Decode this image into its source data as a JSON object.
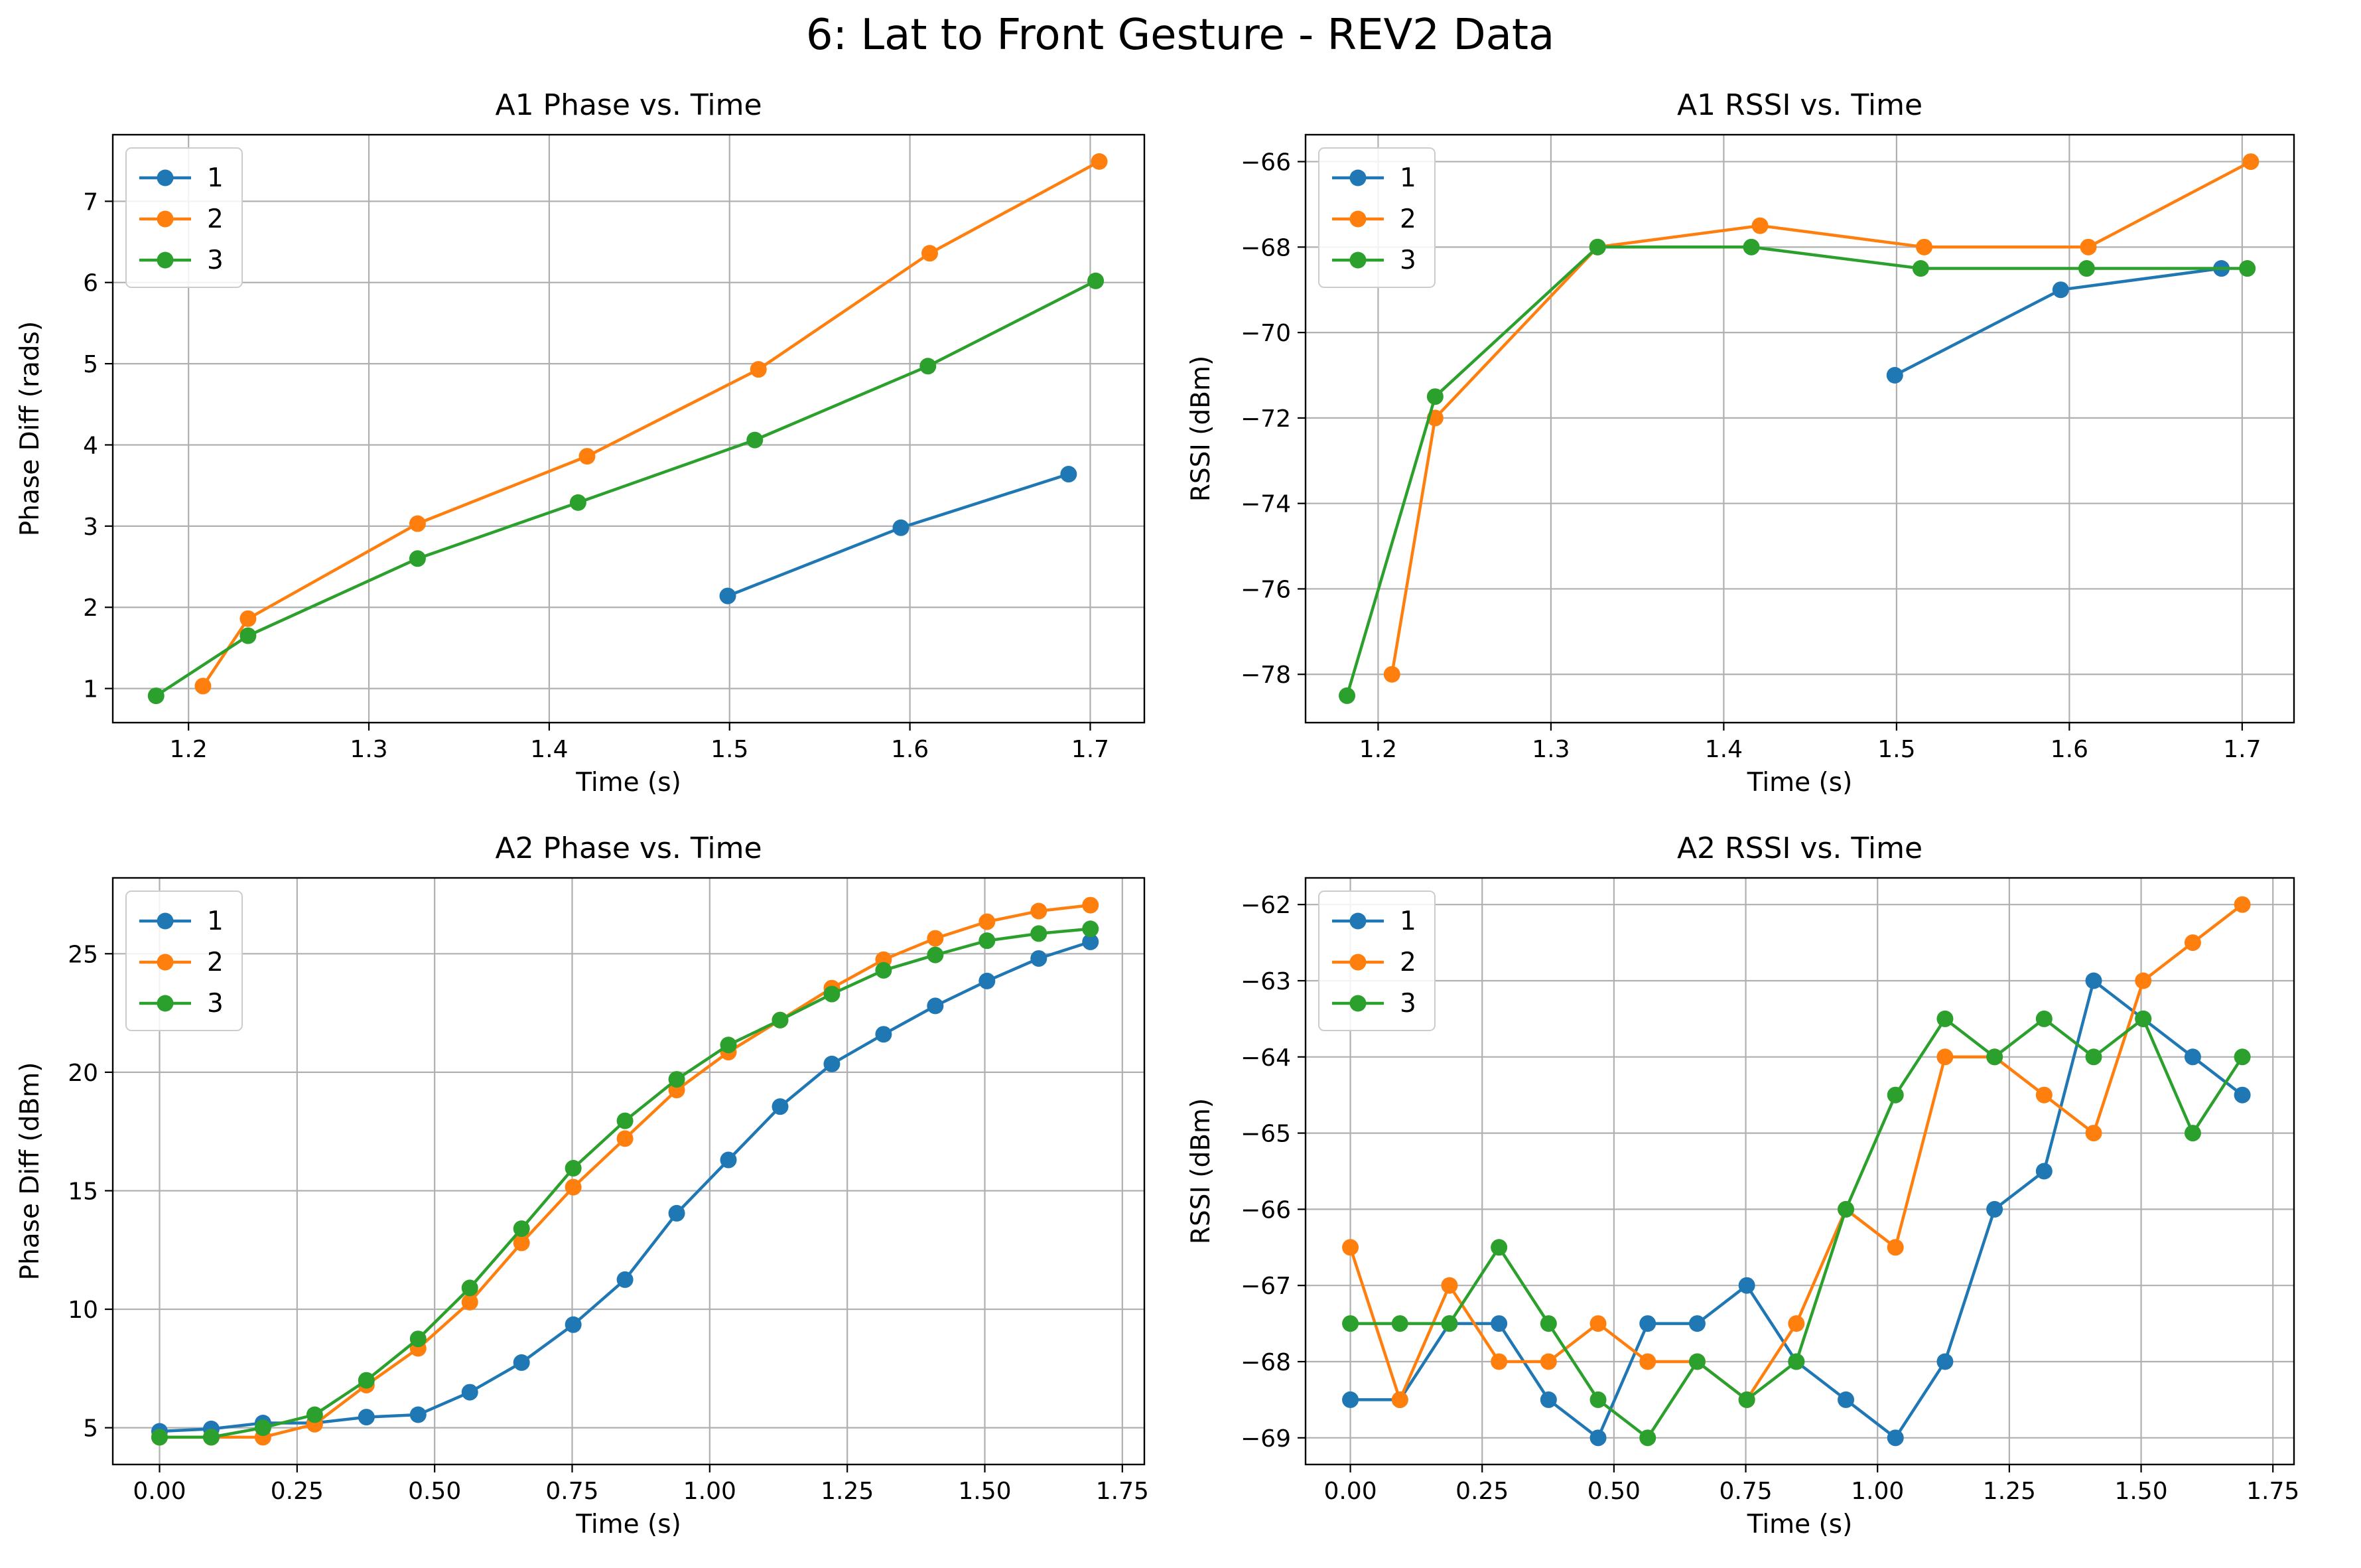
{
  "figure": {
    "title": "6: Lat to Front Gesture - REV2 Data"
  },
  "colors": {
    "series_1": "#1f77b4",
    "series_2": "#ff7f0e",
    "series_3": "#2ca02c",
    "grid": "#b0b0b0"
  },
  "chart_data": [
    {
      "type": "line",
      "title": "A1 Phase vs. Time",
      "xlabel": "Time (s)",
      "ylabel": "Phase Diff (rads)",
      "xlim": [
        1.158,
        1.73
      ],
      "ylim": [
        0.58,
        7.82
      ],
      "xticks": [
        1.2,
        1.3,
        1.4,
        1.5,
        1.6,
        1.7
      ],
      "xtick_labels": [
        "1.2",
        "1.3",
        "1.4",
        "1.5",
        "1.6",
        "1.7"
      ],
      "yticks": [
        1,
        2,
        3,
        4,
        5,
        6,
        7
      ],
      "ytick_labels": [
        "1",
        "2",
        "3",
        "4",
        "5",
        "6",
        "7"
      ],
      "grid": true,
      "legend": "upper-left",
      "series": [
        {
          "name": "1",
          "x": [
            1.499,
            1.595,
            1.688
          ],
          "y": [
            2.14,
            2.98,
            3.64
          ]
        },
        {
          "name": "2",
          "x": [
            1.208,
            1.233,
            1.327,
            1.421,
            1.516,
            1.611,
            1.705
          ],
          "y": [
            1.03,
            1.86,
            3.03,
            3.86,
            4.93,
            6.36,
            7.49
          ]
        },
        {
          "name": "3",
          "x": [
            1.182,
            1.233,
            1.327,
            1.416,
            1.514,
            1.61,
            1.703
          ],
          "y": [
            0.91,
            1.65,
            2.6,
            3.29,
            4.06,
            4.97,
            6.02
          ]
        }
      ]
    },
    {
      "type": "line",
      "title": "A1 RSSI vs. Time",
      "xlabel": "Time (s)",
      "ylabel": "RSSI (dBm)",
      "xlim": [
        1.158,
        1.73
      ],
      "ylim": [
        -79.13,
        -65.37
      ],
      "xticks": [
        1.2,
        1.3,
        1.4,
        1.5,
        1.6,
        1.7
      ],
      "xtick_labels": [
        "1.2",
        "1.3",
        "1.4",
        "1.5",
        "1.6",
        "1.7"
      ],
      "yticks": [
        -78,
        -76,
        -74,
        -72,
        -70,
        -68,
        -66
      ],
      "ytick_labels": [
        "−78",
        "−76",
        "−74",
        "−72",
        "−70",
        "−68",
        "−66"
      ],
      "grid": true,
      "legend": "upper-left",
      "series": [
        {
          "name": "1",
          "x": [
            1.499,
            1.595,
            1.688
          ],
          "y": [
            -71,
            -69,
            -68.5
          ]
        },
        {
          "name": "2",
          "x": [
            1.208,
            1.233,
            1.327,
            1.421,
            1.516,
            1.611,
            1.705
          ],
          "y": [
            -78,
            -72,
            -68,
            -67.5,
            -68,
            -68,
            -66
          ]
        },
        {
          "name": "3",
          "x": [
            1.182,
            1.233,
            1.327,
            1.416,
            1.514,
            1.61,
            1.703
          ],
          "y": [
            -78.5,
            -71.5,
            -68,
            -68,
            -68.5,
            -68.5,
            -68.5
          ]
        }
      ]
    },
    {
      "type": "line",
      "title": "A2 Phase vs. Time",
      "xlabel": "Time (s)",
      "ylabel": "Phase Diff (dBm)",
      "xlim": [
        -0.085,
        1.79
      ],
      "ylim": [
        3.45,
        28.2
      ],
      "xticks": [
        0,
        0.25,
        0.5,
        0.75,
        1.0,
        1.25,
        1.5,
        1.75
      ],
      "xtick_labels": [
        "0.00",
        "0.25",
        "0.50",
        "0.75",
        "1.00",
        "1.25",
        "1.50",
        "1.75"
      ],
      "yticks": [
        5,
        10,
        15,
        20,
        25
      ],
      "ytick_labels": [
        "5",
        "10",
        "15",
        "20",
        "25"
      ],
      "grid": true,
      "legend": "upper-left",
      "series": [
        {
          "name": "1",
          "x": [
            0,
            0.094,
            0.188,
            0.282,
            0.376,
            0.47,
            0.564,
            0.658,
            0.752,
            0.846,
            0.94,
            1.034,
            1.128,
            1.222,
            1.316,
            1.41,
            1.504,
            1.598,
            1.692
          ],
          "y": [
            4.85,
            4.95,
            5.2,
            5.2,
            5.45,
            5.55,
            6.5,
            7.75,
            9.35,
            11.25,
            14.05,
            16.3,
            18.55,
            20.35,
            21.6,
            22.8,
            23.85,
            24.8,
            25.5
          ]
        },
        {
          "name": "2",
          "x": [
            0,
            0.094,
            0.188,
            0.282,
            0.376,
            0.47,
            0.564,
            0.658,
            0.752,
            0.846,
            0.94,
            1.034,
            1.128,
            1.222,
            1.316,
            1.41,
            1.504,
            1.598,
            1.692
          ],
          "y": [
            4.6,
            4.6,
            4.6,
            5.15,
            6.8,
            8.35,
            10.3,
            12.8,
            15.15,
            17.2,
            19.25,
            20.85,
            22.2,
            23.55,
            24.75,
            25.65,
            26.35,
            26.8,
            27.05
          ]
        },
        {
          "name": "3",
          "x": [
            0,
            0.094,
            0.188,
            0.282,
            0.376,
            0.47,
            0.564,
            0.658,
            0.752,
            0.846,
            0.94,
            1.034,
            1.128,
            1.222,
            1.316,
            1.41,
            1.504,
            1.598,
            1.692
          ],
          "y": [
            4.6,
            4.6,
            5.0,
            5.55,
            7.0,
            8.75,
            10.9,
            13.4,
            15.95,
            17.95,
            19.7,
            21.15,
            22.2,
            23.3,
            24.3,
            24.95,
            25.55,
            25.85,
            26.05
          ]
        }
      ]
    },
    {
      "type": "line",
      "title": "A2 RSSI vs. Time",
      "xlabel": "Time (s)",
      "ylabel": "RSSI (dBm)",
      "xlim": [
        -0.085,
        1.79
      ],
      "ylim": [
        -69.35,
        -61.65
      ],
      "xticks": [
        0,
        0.25,
        0.5,
        0.75,
        1.0,
        1.25,
        1.5,
        1.75
      ],
      "xtick_labels": [
        "0.00",
        "0.25",
        "0.50",
        "0.75",
        "1.00",
        "1.25",
        "1.50",
        "1.75"
      ],
      "yticks": [
        -69,
        -68,
        -67,
        -66,
        -65,
        -64,
        -63,
        -62
      ],
      "ytick_labels": [
        "−69",
        "−68",
        "−67",
        "−66",
        "−65",
        "−64",
        "−63",
        "−62"
      ],
      "grid": true,
      "legend": "upper-left",
      "series": [
        {
          "name": "1",
          "x": [
            0,
            0.094,
            0.188,
            0.282,
            0.376,
            0.47,
            0.564,
            0.658,
            0.752,
            0.846,
            0.94,
            1.034,
            1.128,
            1.222,
            1.316,
            1.41,
            1.504,
            1.598,
            1.692
          ],
          "y": [
            -68.5,
            -68.5,
            -67.5,
            -67.5,
            -68.5,
            -69,
            -67.5,
            -67.5,
            -67,
            -68,
            -68.5,
            -69,
            -68,
            -66,
            -65.5,
            -63,
            -63.5,
            -64,
            -64.5
          ]
        },
        {
          "name": "2",
          "x": [
            0,
            0.094,
            0.188,
            0.282,
            0.376,
            0.47,
            0.564,
            0.658,
            0.752,
            0.846,
            0.94,
            1.034,
            1.128,
            1.222,
            1.316,
            1.41,
            1.504,
            1.598,
            1.692
          ],
          "y": [
            -66.5,
            -68.5,
            -67,
            -68,
            -68,
            -67.5,
            -68,
            -68,
            -68.5,
            -67.5,
            -66,
            -66.5,
            -64,
            -64,
            -64.5,
            -65,
            -63,
            -62.5,
            -62
          ]
        },
        {
          "name": "3",
          "x": [
            0,
            0.094,
            0.188,
            0.282,
            0.376,
            0.47,
            0.564,
            0.658,
            0.752,
            0.846,
            0.94,
            1.034,
            1.128,
            1.222,
            1.316,
            1.41,
            1.504,
            1.598,
            1.692
          ],
          "y": [
            -67.5,
            -67.5,
            -67.5,
            -66.5,
            -67.5,
            -68.5,
            -69,
            -68,
            -68.5,
            -68,
            -66,
            -64.5,
            -63.5,
            -64,
            -63.5,
            -64,
            -63.5,
            -65,
            -64
          ]
        }
      ]
    }
  ]
}
